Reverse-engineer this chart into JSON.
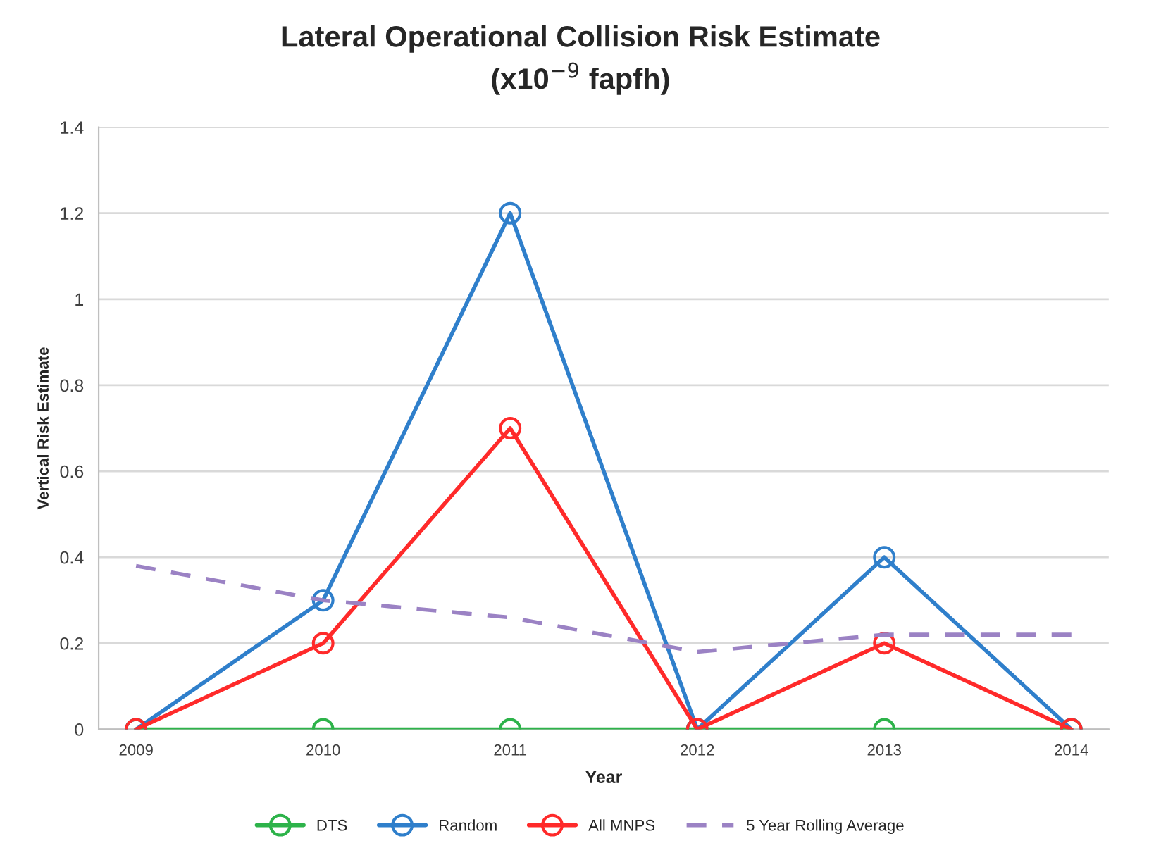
{
  "chart_data": {
    "type": "line",
    "title": "Lateral Operational Collision Risk Estimate",
    "subtitle": "(x10$^{−9}$ fapfh)",
    "xlabel": "Year",
    "ylabel": "Vertical Risk Estimate",
    "categories": [
      "2009",
      "2010",
      "2011",
      "2012",
      "2013",
      "2014"
    ],
    "series": [
      {
        "name": "DTS",
        "color": "#2db34a",
        "values": [
          0,
          0,
          0,
          0,
          0,
          0
        ],
        "marker": "circle",
        "line_style": "solid"
      },
      {
        "name": "Random",
        "color": "#2f7fcb",
        "values": [
          0,
          0.3,
          1.2,
          0,
          0.4,
          0
        ],
        "marker": "circle",
        "line_style": "solid"
      },
      {
        "name": "All MNPS",
        "color": "#ff2a2a",
        "values": [
          0,
          0.2,
          0.7,
          0,
          0.2,
          0
        ],
        "marker": "circle",
        "line_style": "solid"
      },
      {
        "name": "5 Year Rolling Average",
        "color": "#9b82c4",
        "values": [
          0.38,
          0.3,
          0.26,
          0.18,
          0.22,
          0.22
        ],
        "marker": "none",
        "line_style": "dashed"
      }
    ],
    "ylim": [
      0,
      1.4
    ],
    "yticks": [
      0,
      0.2,
      0.4,
      0.6,
      0.8,
      1,
      1.2,
      1.4
    ],
    "grid": "y",
    "legend": "bottom"
  }
}
